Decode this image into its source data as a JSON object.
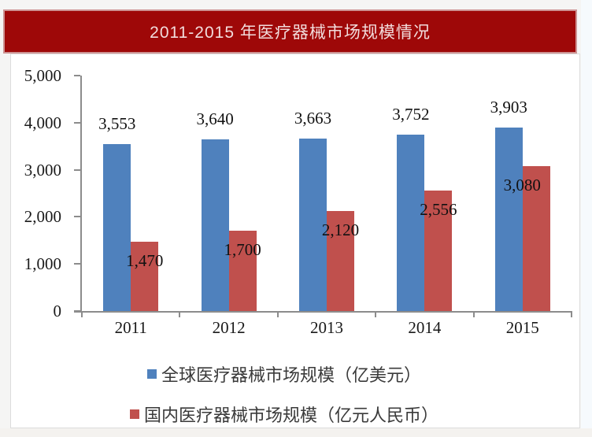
{
  "banner": {
    "bg_color": "#9E0808",
    "text_color": "#F2DCDC"
  },
  "chart_data": {
    "type": "bar",
    "title": "2011-2015 年医疗器械市场规模情况",
    "categories": [
      "2011",
      "2012",
      "2013",
      "2014",
      "2015"
    ],
    "series": [
      {
        "key": "global",
        "name": "全球医疗器械市场规模（亿美元）",
        "color": "#4F81BD",
        "values": [
          3553,
          3640,
          3663,
          3752,
          3903
        ],
        "value_labels": [
          "3,553",
          "3,640",
          "3,663",
          "3,752",
          "3,903"
        ],
        "label_position": "above-bar"
      },
      {
        "key": "domestic",
        "name": "国内医疗器械市场规模（亿元人民币）",
        "color": "#C0504D",
        "values": [
          1470,
          1700,
          2120,
          2556,
          3080
        ],
        "value_labels": [
          "1,470",
          "1,700",
          "2,120",
          "2,556",
          "3,080"
        ],
        "label_position": "inside-top"
      }
    ],
    "y_axis": {
      "min": 0,
      "max": 5000,
      "tick_interval": 1000,
      "tick_labels": [
        "0",
        "1,000",
        "2,000",
        "3,000",
        "4,000",
        "5,000"
      ]
    },
    "grid": false,
    "legend_position": "bottom"
  }
}
